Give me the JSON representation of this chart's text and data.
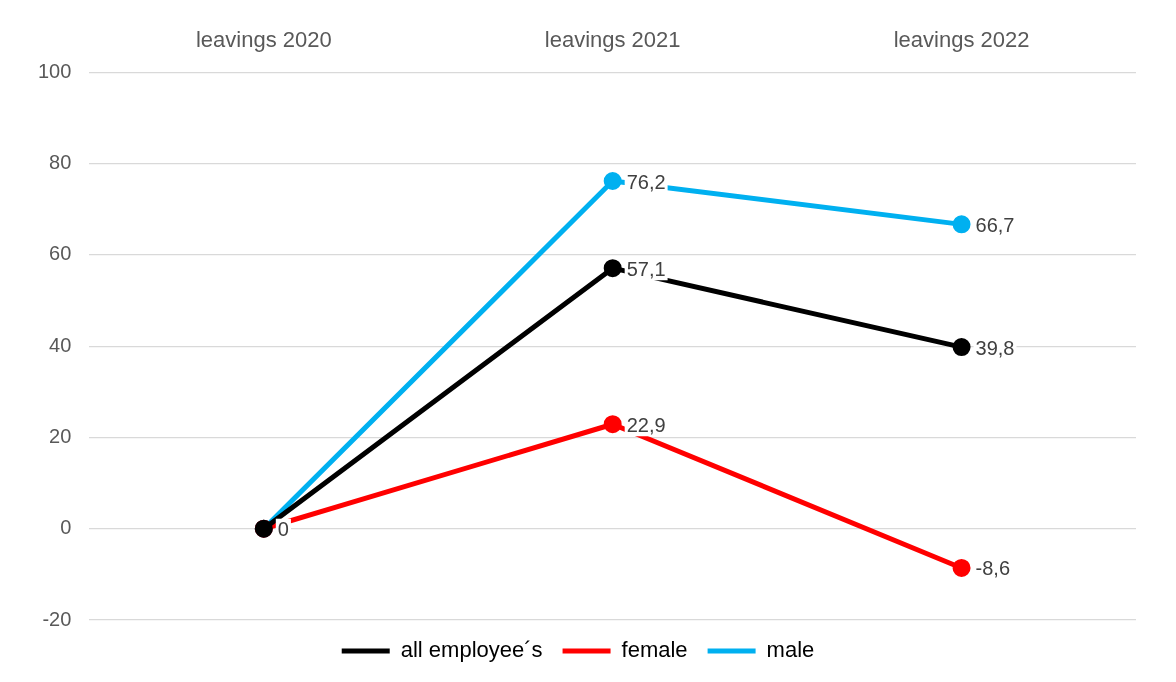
{
  "chart_data": {
    "type": "line",
    "categories": [
      "leavings 2020",
      "leavings 2021",
      "leavings 2022"
    ],
    "series": [
      {
        "name": "all employee´s",
        "color": "#000000",
        "values": [
          0,
          57.1,
          39.8
        ],
        "value_labels": [
          "0",
          "57,1",
          "39,8"
        ]
      },
      {
        "name": "female",
        "color": "#ff0000",
        "values": [
          0,
          22.9,
          -8.6
        ],
        "value_labels": [
          null,
          "22,9",
          "-8,6"
        ]
      },
      {
        "name": "male",
        "color": "#00b0f0",
        "values": [
          0,
          76.2,
          66.7
        ],
        "value_labels": [
          null,
          "76,2",
          "66,7"
        ]
      }
    ],
    "ylim": [
      -20,
      100
    ],
    "yticks": [
      -20,
      0,
      20,
      40,
      60,
      80,
      100
    ],
    "grid": "y",
    "legend": "bottom",
    "marker": "circle",
    "line_style": "solid"
  }
}
